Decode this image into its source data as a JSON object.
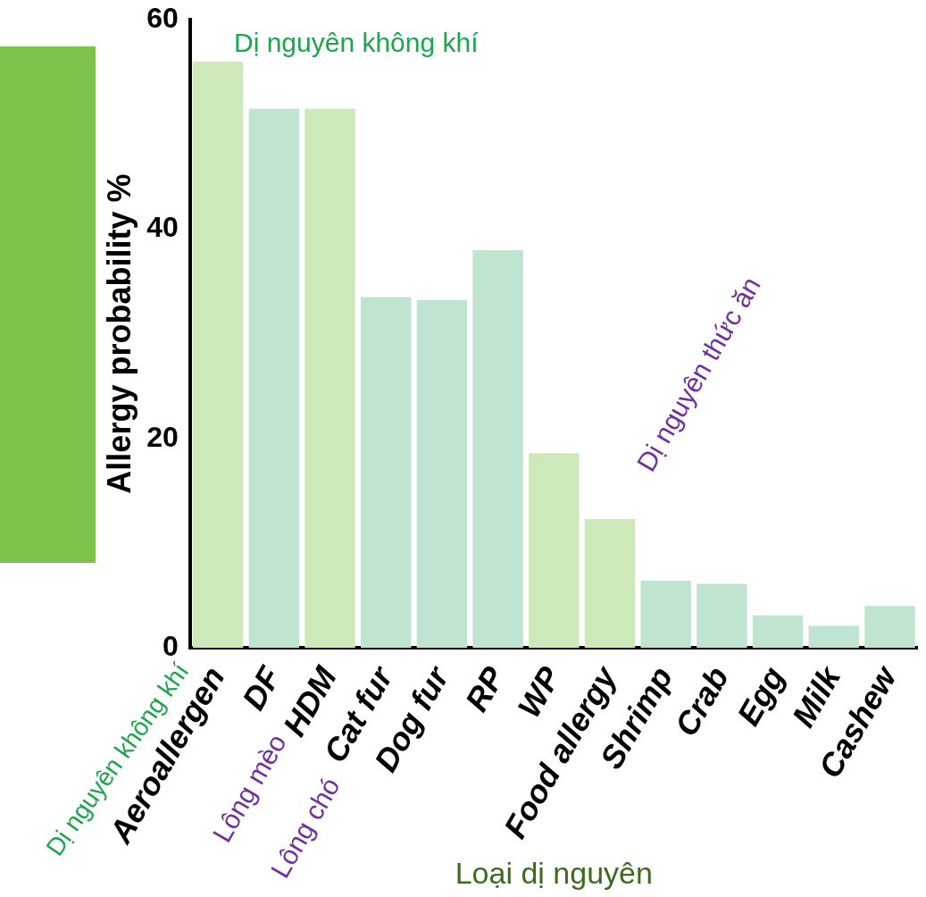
{
  "chart_data": {
    "type": "bar",
    "xlabel": "Loại dị nguyên",
    "ylabel": "Allergy probability %",
    "categories": [
      "Aeroallergen",
      "DF",
      "HDM",
      "Cat fur",
      "Dog fur",
      "RP",
      "WP",
      "Food allergy",
      "Shrimp",
      "Crab",
      "Egg",
      "Milk",
      "Cashew"
    ],
    "values": [
      56,
      51.5,
      51.5,
      33.5,
      33.2,
      38,
      18.6,
      12.3,
      6.4,
      6.1,
      3.1,
      2.1,
      4
    ],
    "colors": [
      "#cde8b9",
      "#bfe4cf",
      "#cde8b9",
      "#bfe4cf",
      "#bfe4cf",
      "#bfe4cf",
      "#cde8b9",
      "#cde8b9",
      "#bfe4cf",
      "#bfe4cf",
      "#bfe4cf",
      "#bfe4cf",
      "#bfe4cf"
    ],
    "ylim": [
      0,
      60
    ],
    "yticks": [
      0,
      20,
      40,
      60
    ],
    "grid": false,
    "legend": false,
    "annotations": [
      "Dị nguyên không khí",
      "Dị nguyên thức ăn",
      "Dị nguyên không khí",
      "Lông mèo",
      "Lông chó"
    ]
  }
}
